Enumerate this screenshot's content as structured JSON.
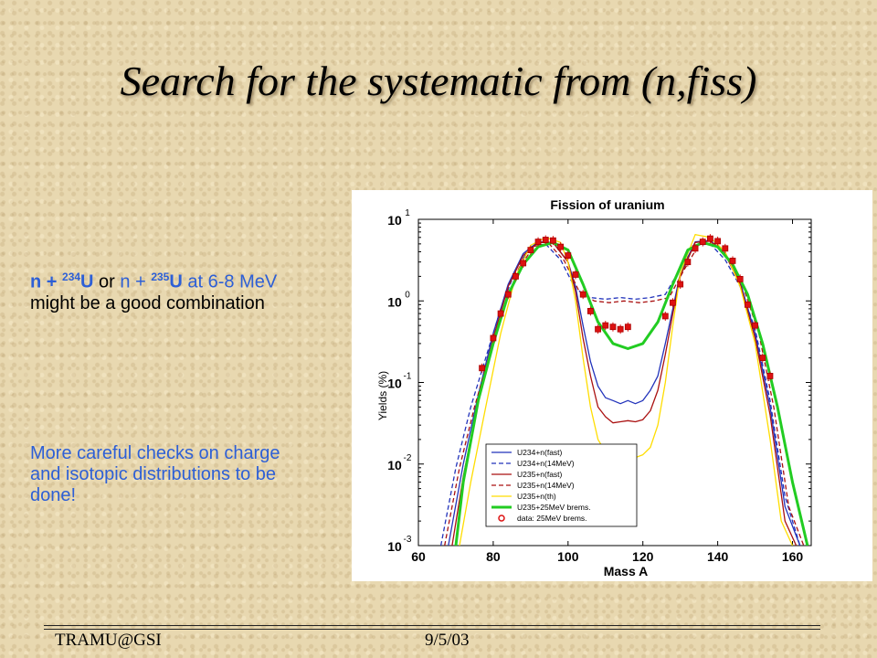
{
  "slide": {
    "title": "Search for the systematic from (n,fiss)",
    "note1": {
      "n_plus": "n + ",
      "mass1": "234",
      "el1": "U",
      "or": " or ",
      "n_plus2": "n + ",
      "mass2": "235",
      "el2": "U",
      "at": " at 6-8 ",
      "mev": "MeV",
      "rest": " might be a good combination"
    },
    "note2": "More careful checks on charge and isotopic distributions to be done!",
    "footer_left": "TRAMU@GSI",
    "footer_right": "9/5/03"
  },
  "chart_data": {
    "type": "line",
    "title": "Fission of uranium",
    "xlabel": "Mass A",
    "ylabel": "Yields (%)",
    "xlim": [
      60,
      165
    ],
    "ylim": [
      0.001,
      10
    ],
    "yscale": "log",
    "xticks": [
      "60",
      "80",
      "100",
      "120",
      "140",
      "160"
    ],
    "yticks": [
      {
        "base": "10",
        "exp": "-3",
        "value": 0.001
      },
      {
        "base": "10",
        "exp": "-2",
        "value": 0.01
      },
      {
        "base": "10",
        "exp": "-1",
        "value": 0.1
      },
      {
        "base": "10",
        "exp": "0",
        "value": 1
      },
      {
        "base": "10",
        "exp": "1",
        "value": 10
      }
    ],
    "legend_position": "bottom-right",
    "series": [
      {
        "name": "U234+n(fast)",
        "color": "#2233bb",
        "dash": "solid",
        "x": [
          68,
          72,
          76,
          80,
          84,
          88,
          92,
          96,
          100,
          102,
          104,
          106,
          108,
          110,
          112,
          114,
          116,
          118,
          120,
          122,
          124,
          126,
          128,
          130,
          134,
          138,
          142,
          146,
          150,
          154,
          158,
          162
        ],
        "y": [
          0.001,
          0.01,
          0.07,
          0.4,
          1.6,
          3.8,
          5.3,
          5.2,
          3.0,
          1.5,
          0.5,
          0.18,
          0.09,
          0.065,
          0.06,
          0.055,
          0.06,
          0.055,
          0.06,
          0.08,
          0.12,
          0.3,
          0.8,
          2.2,
          5.3,
          5.5,
          3.8,
          1.7,
          0.4,
          0.05,
          0.003,
          0.001
        ]
      },
      {
        "name": "U234+n(14MeV)",
        "color": "#2233bb",
        "dash": "dashed",
        "x": [
          66,
          70,
          74,
          78,
          82,
          86,
          90,
          94,
          98,
          102,
          106,
          110,
          114,
          118,
          122,
          126,
          130,
          134,
          138,
          142,
          146,
          150,
          154,
          158,
          162
        ],
        "y": [
          0.001,
          0.009,
          0.05,
          0.2,
          0.8,
          2.4,
          4.6,
          5.0,
          3.2,
          1.4,
          1.1,
          1.05,
          1.1,
          1.05,
          1.1,
          1.2,
          2.5,
          4.8,
          5.0,
          3.2,
          1.5,
          0.45,
          0.06,
          0.004,
          0.001
        ]
      },
      {
        "name": "U235+n(fast)",
        "color": "#aa1111",
        "dash": "solid",
        "x": [
          69,
          72,
          76,
          80,
          84,
          88,
          92,
          96,
          100,
          102,
          104,
          106,
          108,
          110,
          112,
          114,
          116,
          118,
          120,
          122,
          124,
          126,
          128,
          130,
          134,
          138,
          142,
          146,
          150,
          154,
          158,
          161
        ],
        "y": [
          0.001,
          0.007,
          0.06,
          0.35,
          1.5,
          3.6,
          5.2,
          5.2,
          3.0,
          1.3,
          0.35,
          0.12,
          0.05,
          0.038,
          0.032,
          0.033,
          0.034,
          0.033,
          0.035,
          0.045,
          0.08,
          0.22,
          0.7,
          2.0,
          5.2,
          5.4,
          3.7,
          1.6,
          0.35,
          0.04,
          0.002,
          0.001
        ]
      },
      {
        "name": "U235+n(14MeV)",
        "color": "#aa1111",
        "dash": "dashed",
        "x": [
          67,
          71,
          75,
          79,
          83,
          87,
          91,
          95,
          99,
          103,
          107,
          111,
          115,
          119,
          123,
          127,
          131,
          135,
          139,
          143,
          147,
          151,
          155,
          159,
          163
        ],
        "y": [
          0.001,
          0.009,
          0.05,
          0.22,
          0.9,
          2.6,
          4.7,
          5.0,
          3.1,
          1.3,
          1.0,
          0.95,
          1.0,
          0.95,
          1.0,
          1.1,
          2.4,
          4.9,
          5.1,
          3.1,
          1.4,
          0.4,
          0.05,
          0.003,
          0.001
        ]
      },
      {
        "name": "U235+n(th)",
        "color": "#ffdd00",
        "dash": "solid",
        "x": [
          71,
          74,
          78,
          82,
          86,
          90,
          94,
          98,
          100,
          102,
          104,
          106,
          108,
          110,
          112,
          114,
          116,
          118,
          120,
          122,
          124,
          126,
          128,
          130,
          134,
          138,
          142,
          146,
          150,
          154,
          157,
          160
        ],
        "y": [
          0.001,
          0.006,
          0.05,
          0.4,
          2.0,
          4.8,
          6.0,
          5.2,
          3.0,
          1.0,
          0.2,
          0.05,
          0.02,
          0.014,
          0.012,
          0.012,
          0.013,
          0.012,
          0.013,
          0.016,
          0.03,
          0.1,
          0.5,
          2.2,
          6.5,
          6.0,
          4.0,
          1.5,
          0.3,
          0.02,
          0.002,
          0.001
        ]
      },
      {
        "name": "U235+25MeV brems.",
        "color": "#22cc22",
        "dash": "thick",
        "x": [
          70,
          72,
          76,
          80,
          84,
          88,
          92,
          96,
          100,
          104,
          108,
          112,
          116,
          120,
          124,
          128,
          132,
          136,
          140,
          144,
          148,
          152,
          156,
          160,
          164
        ],
        "y": [
          0.001,
          0.006,
          0.06,
          0.3,
          1.2,
          2.8,
          4.6,
          5.2,
          4.2,
          1.6,
          0.55,
          0.3,
          0.26,
          0.3,
          0.55,
          1.6,
          4.2,
          5.2,
          4.6,
          2.8,
          1.2,
          0.3,
          0.05,
          0.006,
          0.001
        ]
      },
      {
        "name": "data: 25MeV brems.",
        "color": "#dd1111",
        "dash": "marker",
        "x": [
          77,
          80,
          82,
          84,
          86,
          88,
          90,
          92,
          94,
          96,
          98,
          100,
          102,
          104,
          106,
          108,
          110,
          112,
          114,
          116,
          126,
          128,
          130,
          132,
          134,
          136,
          138,
          140,
          142,
          144,
          146,
          148,
          150,
          152,
          154
        ],
        "y": [
          0.15,
          0.35,
          0.7,
          1.2,
          2.0,
          2.9,
          4.2,
          5.3,
          5.6,
          5.5,
          4.6,
          3.6,
          2.1,
          1.2,
          0.75,
          0.45,
          0.5,
          0.48,
          0.45,
          0.48,
          0.65,
          0.95,
          1.6,
          3.0,
          4.4,
          5.3,
          5.8,
          5.4,
          4.4,
          3.1,
          1.85,
          0.9,
          0.5,
          0.2,
          0.12
        ]
      }
    ]
  }
}
